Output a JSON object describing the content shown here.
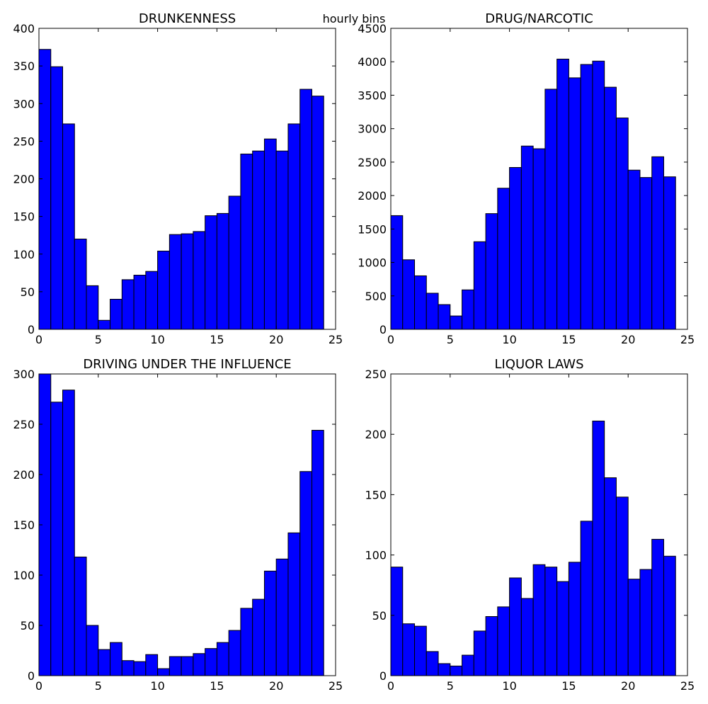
{
  "suptitle": "hourly bins",
  "colors": {
    "bar_fill": "#0000ff",
    "bar_edge": "#000000",
    "axes": "#000000",
    "background": "#ffffff"
  },
  "chart_data": [
    {
      "type": "bar",
      "title": "DRUNKENNESS",
      "xlabel": "",
      "ylabel": "",
      "xlim": [
        0,
        25
      ],
      "ylim": [
        0,
        400
      ],
      "xticks": [
        0,
        5,
        10,
        15,
        20,
        25
      ],
      "yticks": [
        0,
        50,
        100,
        150,
        200,
        250,
        300,
        350,
        400
      ],
      "bin_edges": [
        0,
        1,
        2,
        3,
        4,
        5,
        6,
        7,
        8,
        9,
        10,
        11,
        12,
        13,
        14,
        15,
        16,
        17,
        18,
        19,
        20,
        21,
        22,
        23
      ],
      "values": [
        372,
        349,
        273,
        120,
        58,
        12,
        40,
        66,
        72,
        77,
        104,
        126,
        127,
        130,
        151,
        154,
        177,
        233,
        237,
        253,
        237,
        273,
        319,
        310
      ],
      "grid": false,
      "legend": "none"
    },
    {
      "type": "bar",
      "title": "DRUG/NARCOTIC",
      "xlabel": "",
      "ylabel": "",
      "xlim": [
        0,
        25
      ],
      "ylim": [
        0,
        4500
      ],
      "xticks": [
        0,
        5,
        10,
        15,
        20,
        25
      ],
      "yticks": [
        0,
        500,
        1000,
        1500,
        2000,
        2500,
        3000,
        3500,
        4000,
        4500
      ],
      "bin_edges": [
        0,
        1,
        2,
        3,
        4,
        5,
        6,
        7,
        8,
        9,
        10,
        11,
        12,
        13,
        14,
        15,
        16,
        17,
        18,
        19,
        20,
        21,
        22,
        23
      ],
      "values": [
        1700,
        1040,
        800,
        540,
        370,
        200,
        590,
        1310,
        1730,
        2110,
        2420,
        2740,
        2700,
        3590,
        4040,
        3760,
        3960,
        4010,
        3620,
        3160,
        2380,
        2270,
        2580,
        2280
      ],
      "grid": false,
      "legend": "none"
    },
    {
      "type": "bar",
      "title": "DRIVING UNDER THE INFLUENCE",
      "xlabel": "",
      "ylabel": "",
      "xlim": [
        0,
        25
      ],
      "ylim": [
        0,
        300
      ],
      "xticks": [
        0,
        5,
        10,
        15,
        20,
        25
      ],
      "yticks": [
        0,
        50,
        100,
        150,
        200,
        250,
        300
      ],
      "bin_edges": [
        0,
        1,
        2,
        3,
        4,
        5,
        6,
        7,
        8,
        9,
        10,
        11,
        12,
        13,
        14,
        15,
        16,
        17,
        18,
        19,
        20,
        21,
        22,
        23
      ],
      "values": [
        300,
        272,
        284,
        118,
        50,
        26,
        33,
        15,
        14,
        21,
        7,
        19,
        19,
        22,
        27,
        33,
        45,
        67,
        76,
        104,
        116,
        142,
        203,
        244
      ],
      "grid": false,
      "legend": "none"
    },
    {
      "type": "bar",
      "title": "LIQUOR LAWS",
      "xlabel": "",
      "ylabel": "",
      "xlim": [
        0,
        25
      ],
      "ylim": [
        0,
        250
      ],
      "xticks": [
        0,
        5,
        10,
        15,
        20,
        25
      ],
      "yticks": [
        0,
        50,
        100,
        150,
        200,
        250
      ],
      "bin_edges": [
        0,
        1,
        2,
        3,
        4,
        5,
        6,
        7,
        8,
        9,
        10,
        11,
        12,
        13,
        14,
        15,
        16,
        17,
        18,
        19,
        20,
        21,
        22,
        23
      ],
      "values": [
        90,
        43,
        41,
        20,
        10,
        8,
        17,
        37,
        49,
        57,
        81,
        64,
        92,
        90,
        78,
        94,
        128,
        211,
        164,
        148,
        80,
        88,
        113,
        99
      ],
      "grid": false,
      "legend": "none"
    }
  ]
}
